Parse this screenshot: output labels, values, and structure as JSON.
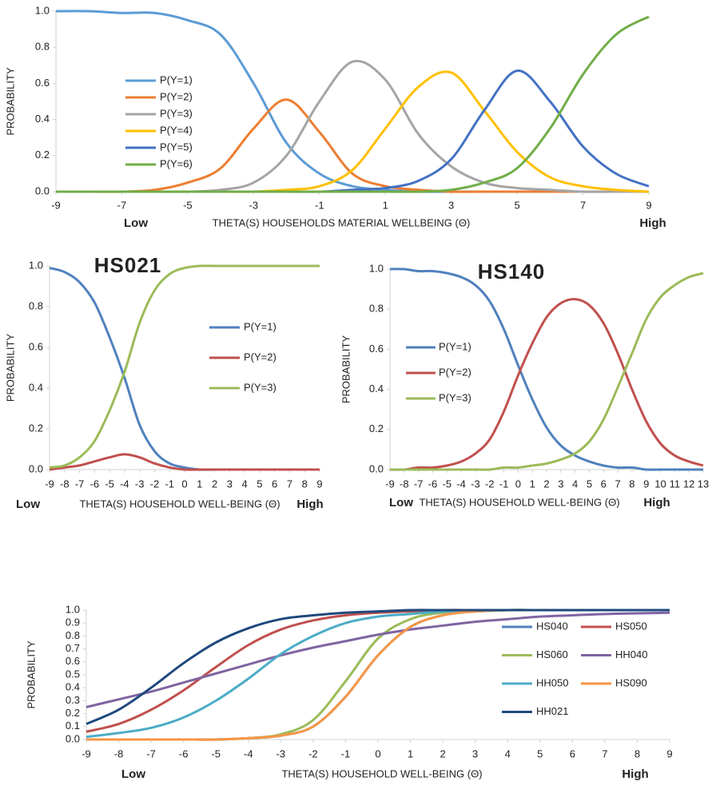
{
  "chart_data": [
    {
      "type": "line",
      "y_label": "PROBABILITY",
      "x_label": "THETA(S) HOUSEHOLDS MATERIAL WELLBEING (Θ)",
      "x_end_labels": [
        "Low",
        "High"
      ],
      "x": [
        -9,
        -8,
        -7,
        -6,
        -5,
        -4,
        -3,
        -2,
        -1,
        0,
        1,
        2,
        3,
        4,
        5,
        6,
        7,
        8,
        9
      ],
      "xlim": [
        -9,
        9
      ],
      "xticks": [
        -9,
        -7,
        -5,
        -3,
        -1,
        1,
        3,
        5,
        7,
        9
      ],
      "ylim": [
        0,
        1
      ],
      "yticks": [
        {
          "value": 0,
          "label": "0.0"
        },
        {
          "value": 0.2,
          "label": "0.2"
        },
        {
          "value": 0.4,
          "label": "0.4"
        },
        {
          "value": 0.6,
          "label": "0.6"
        },
        {
          "value": 0.8,
          "label": "0.8"
        },
        {
          "value": 1,
          "label": "1.0"
        }
      ],
      "series": [
        {
          "name": "P(Y=1)",
          "color": "#5b9bd5",
          "values": [
            1,
            1,
            0.99,
            0.99,
            0.95,
            0.87,
            0.6,
            0.27,
            0.1,
            0.03,
            0.01,
            0,
            0,
            0,
            0,
            0,
            0,
            0,
            0
          ]
        },
        {
          "name": "P(Y=2)",
          "color": "#ed7d31",
          "values": [
            0,
            0,
            0,
            0.01,
            0.05,
            0.13,
            0.35,
            0.51,
            0.33,
            0.1,
            0.03,
            0.01,
            0,
            0,
            0,
            0,
            0,
            0,
            0
          ]
        },
        {
          "name": "P(Y=3)",
          "color": "#a5a5a5",
          "values": [
            0,
            0,
            0,
            0,
            0,
            0.01,
            0.05,
            0.2,
            0.5,
            0.72,
            0.62,
            0.32,
            0.14,
            0.05,
            0.02,
            0.01,
            0,
            0,
            0
          ]
        },
        {
          "name": "P(Y=4)",
          "color": "#ffc000",
          "values": [
            0,
            0,
            0,
            0,
            0,
            0,
            0,
            0.01,
            0.03,
            0.12,
            0.35,
            0.58,
            0.66,
            0.45,
            0.22,
            0.08,
            0.03,
            0.01,
            0
          ]
        },
        {
          "name": "P(Y=5)",
          "color": "#4472c4",
          "values": [
            0,
            0,
            0,
            0,
            0,
            0,
            0,
            0,
            0,
            0.01,
            0.02,
            0.06,
            0.18,
            0.45,
            0.67,
            0.5,
            0.25,
            0.1,
            0.03
          ]
        },
        {
          "name": "P(Y=6)",
          "color": "#70ad47",
          "values": [
            0,
            0,
            0,
            0,
            0,
            0,
            0,
            0,
            0,
            0,
            0,
            0,
            0.01,
            0.05,
            0.13,
            0.35,
            0.65,
            0.87,
            0.97
          ]
        }
      ]
    },
    {
      "type": "line",
      "title": "HS021",
      "y_label": "PROBABILITY",
      "x_label": "THETA(S) HOUSEHOLD WELL-BEING (Θ)",
      "x_end_labels": [
        "Low",
        "High"
      ],
      "x": [
        -9,
        -8,
        -7,
        -6,
        -5,
        -4,
        -3,
        -2,
        -1,
        0,
        1,
        2,
        3,
        4,
        5,
        6,
        7,
        8,
        9
      ],
      "xlim": [
        -9,
        9
      ],
      "xticks": [
        -9,
        -8,
        -7,
        -6,
        -5,
        -4,
        -3,
        -2,
        -1,
        0,
        1,
        2,
        3,
        4,
        5,
        6,
        7,
        8,
        9
      ],
      "ylim": [
        0,
        1
      ],
      "yticks": [
        {
          "value": 0,
          "label": "0.0"
        },
        {
          "value": 0.2,
          "label": "0.2"
        },
        {
          "value": 0.4,
          "label": "0.4"
        },
        {
          "value": 0.6,
          "label": "0.6"
        },
        {
          "value": 0.8,
          "label": "0.8"
        },
        {
          "value": 1,
          "label": "1.0"
        }
      ],
      "series": [
        {
          "name": "P(Y=1)",
          "color": "#4f81bd",
          "values": [
            0.99,
            0.97,
            0.92,
            0.82,
            0.65,
            0.45,
            0.22,
            0.09,
            0.03,
            0.01,
            0,
            0,
            0,
            0,
            0,
            0,
            0,
            0,
            0
          ]
        },
        {
          "name": "P(Y=2)",
          "color": "#c0504d",
          "values": [
            0,
            0.01,
            0.02,
            0.04,
            0.06,
            0.075,
            0.06,
            0.03,
            0.01,
            0,
            0,
            0,
            0,
            0,
            0,
            0,
            0,
            0,
            0
          ]
        },
        {
          "name": "P(Y=3)",
          "color": "#9bbb59",
          "values": [
            0.01,
            0.02,
            0.06,
            0.14,
            0.29,
            0.48,
            0.72,
            0.88,
            0.96,
            0.99,
            1,
            1,
            1,
            1,
            1,
            1,
            1,
            1,
            1
          ]
        }
      ]
    },
    {
      "type": "line",
      "title": "HS140",
      "y_label": "PROBABILITY",
      "x_label": "THETA(S) HOUSEHOLD WELL-BEING (Θ)",
      "x_end_labels": [
        "Low",
        "High"
      ],
      "x": [
        -9,
        -8,
        -7,
        -6,
        -5,
        -4,
        -3,
        -2,
        -1,
        0,
        1,
        2,
        3,
        4,
        5,
        6,
        7,
        8,
        9,
        10,
        11,
        12,
        13
      ],
      "xlim": [
        -9,
        13
      ],
      "xticks": [
        -9,
        -8,
        -7,
        -6,
        -5,
        -4,
        -3,
        -2,
        -1,
        0,
        1,
        2,
        3,
        4,
        5,
        6,
        7,
        8,
        9,
        10,
        11,
        12,
        13
      ],
      "ylim": [
        0,
        1
      ],
      "yticks": [
        {
          "value": 0,
          "label": "0.0"
        },
        {
          "value": 0.2,
          "label": "0.2"
        },
        {
          "value": 0.4,
          "label": "0.4"
        },
        {
          "value": 0.6,
          "label": "0.6"
        },
        {
          "value": 0.8,
          "label": "0.8"
        },
        {
          "value": 1,
          "label": "1.0"
        }
      ],
      "series": [
        {
          "name": "P(Y=1)",
          "color": "#4f81bd",
          "values": [
            1,
            1,
            0.99,
            0.99,
            0.98,
            0.96,
            0.92,
            0.84,
            0.7,
            0.52,
            0.35,
            0.21,
            0.12,
            0.07,
            0.04,
            0.02,
            0.01,
            0.01,
            0,
            0,
            0,
            0,
            0
          ]
        },
        {
          "name": "P(Y=2)",
          "color": "#c0504d",
          "values": [
            0,
            0,
            0.01,
            0.01,
            0.02,
            0.04,
            0.08,
            0.15,
            0.29,
            0.47,
            0.63,
            0.76,
            0.83,
            0.85,
            0.82,
            0.73,
            0.58,
            0.4,
            0.24,
            0.13,
            0.07,
            0.04,
            0.02
          ]
        },
        {
          "name": "P(Y=3)",
          "color": "#9bbb59",
          "values": [
            0,
            0,
            0,
            0,
            0,
            0,
            0,
            0,
            0.01,
            0.01,
            0.02,
            0.03,
            0.05,
            0.08,
            0.14,
            0.25,
            0.41,
            0.58,
            0.75,
            0.86,
            0.92,
            0.96,
            0.98
          ]
        }
      ]
    },
    {
      "type": "line",
      "y_label": "PROBABILITY",
      "x_label": "THETA(S) HOUSEHOLD WELL-BEING (Θ)",
      "x_end_labels": [
        "Low",
        "High"
      ],
      "x": [
        -9,
        -8,
        -7,
        -6,
        -5,
        -4,
        -3,
        -2,
        -1,
        0,
        1,
        2,
        3,
        4,
        5,
        6,
        7,
        8,
        9
      ],
      "xlim": [
        -9,
        9
      ],
      "xticks": [
        -9,
        -8,
        -7,
        -6,
        -5,
        -4,
        -3,
        -2,
        -1,
        0,
        1,
        2,
        3,
        4,
        5,
        6,
        7,
        8,
        9
      ],
      "ylim": [
        0,
        1
      ],
      "yticks": [
        {
          "value": 0,
          "label": "0.0"
        },
        {
          "value": 0.1,
          "label": "0.1"
        },
        {
          "value": 0.2,
          "label": "0.2"
        },
        {
          "value": 0.3,
          "label": "0.3"
        },
        {
          "value": 0.4,
          "label": "0.4"
        },
        {
          "value": 0.5,
          "label": "0.5"
        },
        {
          "value": 0.6,
          "label": "0.6"
        },
        {
          "value": 0.7,
          "label": "0.7"
        },
        {
          "value": 0.8,
          "label": "0.8"
        },
        {
          "value": 0.9,
          "label": "0.9"
        },
        {
          "value": 1,
          "label": "1.0"
        }
      ],
      "series": [
        {
          "name": "HS040",
          "color": "#4f81bd",
          "values": [
            0,
            0,
            0,
            0,
            0,
            0.01,
            0.03,
            0.1,
            0.33,
            0.65,
            0.87,
            0.96,
            0.99,
            1,
            1,
            1,
            1,
            1,
            1
          ]
        },
        {
          "name": "HS050",
          "color": "#c0504d",
          "values": [
            0.06,
            0.12,
            0.23,
            0.38,
            0.56,
            0.73,
            0.85,
            0.92,
            0.96,
            0.98,
            0.99,
            1,
            1,
            1,
            1,
            1,
            1,
            1,
            1
          ]
        },
        {
          "name": "HS060",
          "color": "#9bbb59",
          "values": [
            0,
            0,
            0,
            0,
            0,
            0.01,
            0.04,
            0.15,
            0.45,
            0.78,
            0.93,
            0.98,
            0.99,
            1,
            1,
            1,
            1,
            1,
            1
          ]
        },
        {
          "name": "HH040",
          "color": "#8064a2",
          "values": [
            0.25,
            0.31,
            0.37,
            0.44,
            0.51,
            0.58,
            0.65,
            0.71,
            0.76,
            0.81,
            0.85,
            0.88,
            0.91,
            0.93,
            0.95,
            0.96,
            0.97,
            0.975,
            0.98
          ]
        },
        {
          "name": "HH050",
          "color": "#4bacc6",
          "values": [
            0.02,
            0.05,
            0.09,
            0.17,
            0.3,
            0.47,
            0.66,
            0.8,
            0.9,
            0.95,
            0.97,
            0.99,
            0.99,
            1,
            1,
            1,
            1,
            1,
            1
          ]
        },
        {
          "name": "HS090",
          "color": "#f79646",
          "values": [
            0,
            0,
            0,
            0,
            0,
            0.01,
            0.03,
            0.1,
            0.33,
            0.65,
            0.87,
            0.96,
            0.99,
            1,
            1,
            1,
            1,
            1,
            1
          ]
        },
        {
          "name": "HH021",
          "color": "#1f497d",
          "values": [
            0.12,
            0.23,
            0.4,
            0.59,
            0.75,
            0.86,
            0.93,
            0.96,
            0.98,
            0.99,
            1,
            1,
            1,
            1,
            1,
            1,
            1,
            1,
            1
          ]
        }
      ]
    }
  ]
}
